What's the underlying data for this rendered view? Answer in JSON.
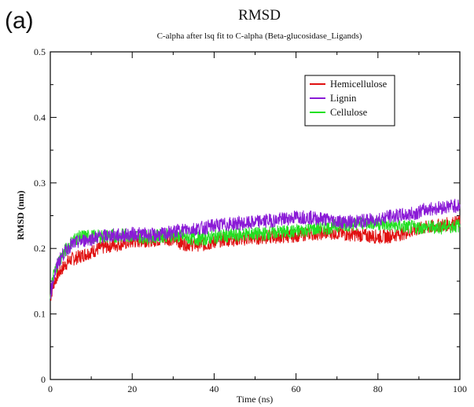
{
  "panel_label": "(a)",
  "chart_data": {
    "type": "line",
    "title": "RMSD",
    "subtitle": "C-alpha after lsq fit to C-alpha (Beta-glucosidase_Ligands)",
    "xlabel": "Time (ns)",
    "ylabel": "RMSD (nm)",
    "xlim": [
      0,
      100
    ],
    "ylim": [
      0,
      0.5
    ],
    "xticks": [
      "0",
      "20",
      "40",
      "60",
      "80",
      "100"
    ],
    "yticks": [
      "0",
      "0.1",
      "0.2",
      "0.3",
      "0.4",
      "0.5"
    ],
    "grid": false,
    "legend_position": "top-right",
    "series": [
      {
        "name": "Hemicellulose",
        "color": "#e01010",
        "x": [
          0,
          1,
          2,
          3,
          4,
          5,
          6,
          8,
          10,
          12,
          15,
          18,
          20,
          22,
          25,
          28,
          30,
          32,
          35,
          38,
          40,
          42,
          45,
          48,
          50,
          52,
          55,
          58,
          60,
          62,
          65,
          68,
          70,
          72,
          75,
          78,
          80,
          82,
          85,
          88,
          90,
          92,
          95,
          98,
          100
        ],
        "y": [
          0.125,
          0.15,
          0.162,
          0.17,
          0.178,
          0.183,
          0.185,
          0.19,
          0.195,
          0.2,
          0.205,
          0.208,
          0.21,
          0.212,
          0.213,
          0.214,
          0.215,
          0.208,
          0.206,
          0.206,
          0.21,
          0.213,
          0.214,
          0.215,
          0.216,
          0.217,
          0.218,
          0.219,
          0.22,
          0.222,
          0.223,
          0.224,
          0.224,
          0.222,
          0.221,
          0.219,
          0.218,
          0.218,
          0.222,
          0.226,
          0.23,
          0.232,
          0.235,
          0.238,
          0.24
        ]
      },
      {
        "name": "Lignin",
        "color": "#8a1ad6",
        "x": [
          0,
          1,
          2,
          3,
          4,
          5,
          6,
          8,
          10,
          12,
          15,
          18,
          20,
          22,
          25,
          28,
          30,
          32,
          35,
          38,
          40,
          42,
          45,
          48,
          50,
          52,
          55,
          58,
          60,
          62,
          65,
          68,
          70,
          72,
          75,
          78,
          80,
          82,
          85,
          88,
          90,
          92,
          95,
          98,
          100
        ],
        "y": [
          0.13,
          0.16,
          0.18,
          0.19,
          0.198,
          0.205,
          0.208,
          0.212,
          0.215,
          0.218,
          0.22,
          0.22,
          0.222,
          0.222,
          0.22,
          0.222,
          0.225,
          0.228,
          0.23,
          0.232,
          0.235,
          0.236,
          0.238,
          0.238,
          0.24,
          0.242,
          0.243,
          0.246,
          0.248,
          0.248,
          0.246,
          0.244,
          0.242,
          0.24,
          0.241,
          0.243,
          0.245,
          0.248,
          0.25,
          0.252,
          0.256,
          0.26,
          0.262,
          0.265,
          0.265
        ]
      },
      {
        "name": "Cellulose",
        "color": "#22e022",
        "x": [
          0,
          1,
          2,
          3,
          4,
          5,
          6,
          8,
          10,
          12,
          15,
          18,
          20,
          22,
          25,
          28,
          30,
          32,
          35,
          38,
          40,
          42,
          45,
          48,
          50,
          52,
          55,
          58,
          60,
          62,
          65,
          68,
          70,
          72,
          75,
          78,
          80,
          82,
          85,
          88,
          90,
          92,
          95,
          98,
          100
        ],
        "y": [
          0.13,
          0.165,
          0.18,
          0.19,
          0.2,
          0.208,
          0.215,
          0.218,
          0.218,
          0.218,
          0.219,
          0.22,
          0.22,
          0.218,
          0.218,
          0.22,
          0.22,
          0.218,
          0.215,
          0.215,
          0.218,
          0.219,
          0.22,
          0.222,
          0.222,
          0.222,
          0.225,
          0.225,
          0.226,
          0.228,
          0.23,
          0.232,
          0.235,
          0.236,
          0.238,
          0.24,
          0.238,
          0.236,
          0.234,
          0.232,
          0.232,
          0.232,
          0.233,
          0.234,
          0.235
        ]
      }
    ]
  }
}
